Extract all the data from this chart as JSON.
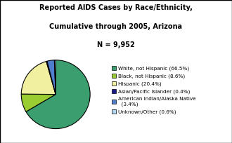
{
  "slices": [
    66.5,
    8.6,
    20.4,
    0.4,
    3.4,
    0.6
  ],
  "colors": [
    "#3a9e6e",
    "#9acd32",
    "#f0f0a0",
    "#1a1a8c",
    "#4f7fcc",
    "#b0d8f0"
  ],
  "labels": [
    "White, not Hispanic (66.5%)",
    "Black, not Hispanic (8.6%)",
    "Hispanic (20.4%)",
    "Asian/Pacific Islander (0.4%)",
    "American Indian/Alaska Native\n  (3.4%)",
    "Unknown/Other (0.6%)"
  ],
  "title_line1": "Reported AIDS Cases by Race/Ethnicity,",
  "title_line2": "Cumulative through 2005, Arizona",
  "title_line3": "N = 9,952",
  "legend_fontsize": 5.2,
  "title_fontsize": 7.0,
  "background_color": "#ffffff",
  "edge_color": "#000000",
  "start_angle": 90
}
